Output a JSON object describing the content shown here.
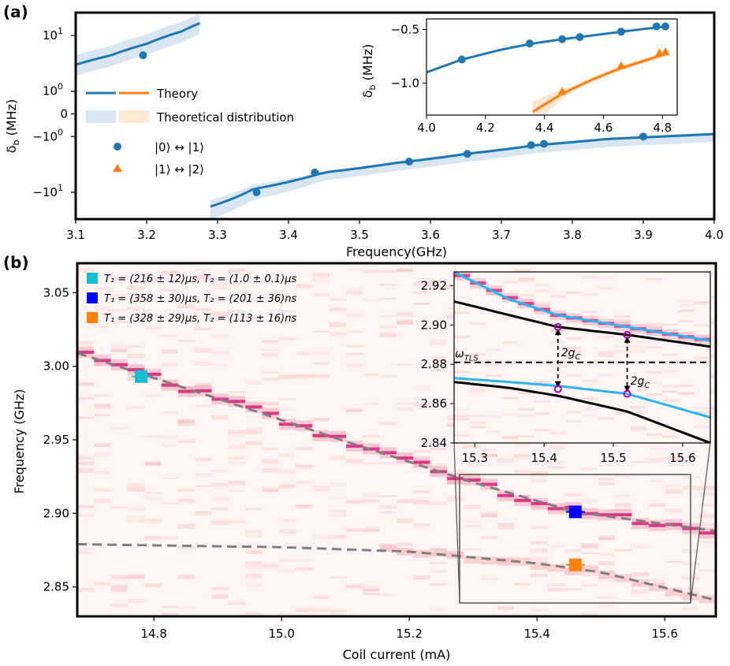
{
  "chart_data": [
    {
      "panel": "(a)",
      "type": "scatter",
      "xlabel": "Frequency(GHz)",
      "ylabel": "δ_b (MHz)",
      "xlim": [
        3.1,
        4.0
      ],
      "xticks": [
        "3.1",
        "3.2",
        "3.3",
        "3.4",
        "3.5",
        "3.6",
        "3.7",
        "3.8",
        "3.9",
        "4.0"
      ],
      "yscale": "symlog",
      "yticks": [
        "10^1",
        "10^0",
        "0",
        "−10^0",
        "−10^1"
      ],
      "legend": {
        "theory": "Theory",
        "distribution": "Theoretical distribution",
        "transition01": "|0⟩ ↔ |1⟩",
        "transition12": "|1⟩ ↔ |2⟩"
      },
      "series": [
        {
          "name": "|0⟩ ↔ |1⟩ data",
          "x": [
            3.195,
            3.355,
            3.437,
            3.57,
            3.652,
            3.742,
            3.76,
            3.9
          ],
          "y": [
            5.0,
            -10.0,
            -5.0,
            -3.3,
            -2.4,
            -1.6,
            -1.5,
            -1.0
          ]
        },
        {
          "name": "Theory (upper branch)",
          "x": [
            3.1,
            3.15,
            3.2,
            3.25,
            3.275
          ],
          "y": [
            3.5,
            5.0,
            7.5,
            11.5,
            15.0
          ]
        },
        {
          "name": "Theory (lower branch)",
          "x": [
            3.29,
            3.35,
            3.45,
            3.55,
            3.65,
            3.75,
            3.85,
            4.0
          ],
          "y": [
            -16.0,
            -9.0,
            -5.0,
            -3.5,
            -2.4,
            -1.6,
            -1.15,
            -0.85
          ]
        }
      ],
      "inset": {
        "xlim": [
          4.0,
          4.85
        ],
        "ylim": [
          -1.3,
          -0.4
        ],
        "xticks": [
          "4.0",
          "4.2",
          "4.4",
          "4.6",
          "4.8"
        ],
        "yticks": [
          "−0.5",
          "−1.0"
        ],
        "ylabel": "δ_b (MHz)",
        "series": [
          {
            "name": "|0⟩ ↔ |1⟩",
            "color": "#1f77b4",
            "x": [
              4.12,
              4.35,
              4.46,
              4.52,
              4.66,
              4.78,
              4.81
            ],
            "y": [
              -0.78,
              -0.63,
              -0.59,
              -0.57,
              -0.52,
              -0.47,
              -0.47
            ]
          },
          {
            "name": "|1⟩ ↔ |2⟩",
            "color": "#ff7f0e",
            "x": [
              4.46,
              4.66,
              4.79,
              4.81
            ],
            "y": [
              -1.08,
              -0.84,
              -0.72,
              -0.71
            ]
          }
        ]
      }
    },
    {
      "panel": "(b)",
      "type": "heatmap",
      "xlabel": "Coil current (mA)",
      "ylabel": "Frequency (GHz)",
      "xlim": [
        14.68,
        15.68
      ],
      "ylim": [
        2.83,
        3.07
      ],
      "xticks": [
        "14.8",
        "15.0",
        "15.2",
        "15.4",
        "15.6"
      ],
      "yticks": [
        "3.05",
        "3.00",
        "2.95",
        "2.90",
        "2.85"
      ],
      "legend": [
        {
          "label": "T₁ = (216 ± 12)μs, T₂ = (1.0 ± 0.1)μs",
          "color": "#17becf"
        },
        {
          "label": "T₁ = (358 ± 30)μs, T₂ = (201 ± 36)ns",
          "color": "#0000ff"
        },
        {
          "label": "T₁ = (328 ± 29)μs, T₂ = (113 ± 16)ns",
          "color": "#ff7f0e"
        }
      ],
      "markers": [
        {
          "x": 14.78,
          "y": 2.993,
          "color": "#17becf"
        },
        {
          "x": 15.46,
          "y": 2.901,
          "color": "#0000ff"
        },
        {
          "x": 15.46,
          "y": 2.865,
          "color": "#ff7f0e"
        }
      ],
      "dashed_upper": {
        "x": [
          14.68,
          14.9,
          15.1,
          15.3,
          15.46,
          15.68
        ],
        "y": [
          3.009,
          2.978,
          2.949,
          2.921,
          2.901,
          2.888
        ]
      },
      "dashed_lower": {
        "x": [
          14.68,
          15.0,
          15.2,
          15.4,
          15.5,
          15.68
        ],
        "y": [
          2.879,
          2.877,
          2.874,
          2.866,
          2.86,
          2.841
        ]
      },
      "inset": {
        "xlim": [
          15.27,
          15.64
        ],
        "ylim": [
          2.84,
          2.927
        ],
        "xticks": [
          "15.3",
          "15.4",
          "15.5",
          "15.6"
        ],
        "yticks": [
          "2.92",
          "2.90",
          "2.88",
          "2.86",
          "2.84"
        ],
        "omega_label": "ω_TLS",
        "omega_value": 2.881,
        "coupling_label": "2g_C",
        "coupling_x": [
          15.42,
          15.52
        ]
      }
    }
  ]
}
